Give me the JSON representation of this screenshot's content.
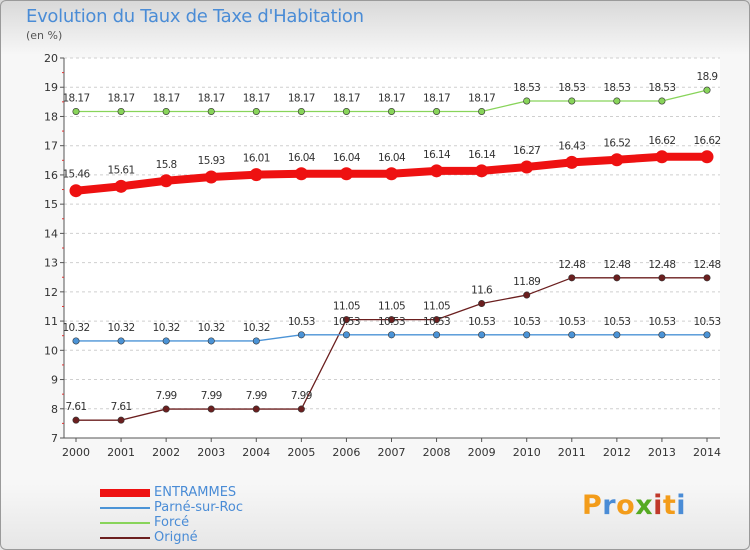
{
  "title": "Evolution du Taux de Taxe d'Habitation",
  "unit_label": "(en %)",
  "logo": {
    "letters": [
      "P",
      "r",
      "o",
      "x",
      "i",
      "t",
      "i"
    ],
    "colors": [
      "#f39c1a",
      "#4a8cd6",
      "#f39c1a",
      "#55aa22",
      "#c0392b",
      "#f39c1a",
      "#4a8cd6"
    ]
  },
  "chart_data": {
    "type": "line",
    "title": "Evolution du Taux de Taxe d'Habitation",
    "ylabel": "(en %)",
    "xlabel": "",
    "ylim": [
      7,
      20
    ],
    "y_ticks": [
      "7",
      "8",
      "9",
      "10",
      "11",
      "12",
      "13",
      "14",
      "15",
      "16",
      "17",
      "18",
      "19",
      "20"
    ],
    "grid": "horizontal dashed",
    "x": [
      "2000",
      "2001",
      "2002",
      "2003",
      "2004",
      "2005",
      "2006",
      "2007",
      "2008",
      "2009",
      "2010",
      "2011",
      "2012",
      "2013",
      "2014"
    ],
    "series": [
      {
        "name": "ENTRAMMES",
        "color": "#ee1111",
        "values": [
          15.46,
          15.61,
          15.8,
          15.93,
          16.01,
          16.04,
          16.04,
          16.04,
          16.14,
          16.14,
          16.27,
          16.43,
          16.52,
          16.62,
          16.62
        ],
        "labels": [
          "15.46",
          "15.61",
          "15.8",
          "15.93",
          "16.01",
          "16.04",
          "16.04",
          "16.04",
          "16.14",
          "16.14",
          "16.27",
          "16.43",
          "16.52",
          "16.62",
          "16.62"
        ]
      },
      {
        "name": "Parné-sur-Roc",
        "color": "#4b93d6",
        "values": [
          10.32,
          10.32,
          10.32,
          10.32,
          10.32,
          10.53,
          10.53,
          10.53,
          10.53,
          10.53,
          10.53,
          10.53,
          10.53,
          10.53,
          10.53
        ],
        "labels": [
          "10.32",
          "10.32",
          "10.32",
          "10.32",
          "10.32",
          "10.53",
          "10.53",
          "10.53",
          "10.53",
          "10.53",
          "10.53",
          "10.53",
          "10.53",
          "10.53",
          "10.53"
        ]
      },
      {
        "name": "Forcé",
        "color": "#88d45a",
        "values": [
          18.17,
          18.17,
          18.17,
          18.17,
          18.17,
          18.17,
          18.17,
          18.17,
          18.17,
          18.17,
          18.53,
          18.53,
          18.53,
          18.53,
          18.9
        ],
        "labels": [
          "18.17",
          "18.17",
          "18.17",
          "18.17",
          "18.17",
          "18.17",
          "18.17",
          "18.17",
          "18.17",
          "18.17",
          "18.53",
          "18.53",
          "18.53",
          "18.53",
          "18.9"
        ]
      },
      {
        "name": "Origné",
        "color": "#6b1f1f",
        "values": [
          7.61,
          7.61,
          7.99,
          7.99,
          7.99,
          7.99,
          11.05,
          11.05,
          11.05,
          11.6,
          11.89,
          12.48,
          12.48,
          12.48,
          12.48
        ],
        "labels": [
          "7.61",
          "7.61",
          "7.99",
          "7.99",
          "7.99",
          "7.99",
          "11.05",
          "11.05",
          "11.05",
          "11.6",
          "11.89",
          "12.48",
          "12.48",
          "12.48",
          "12.48"
        ]
      }
    ]
  }
}
